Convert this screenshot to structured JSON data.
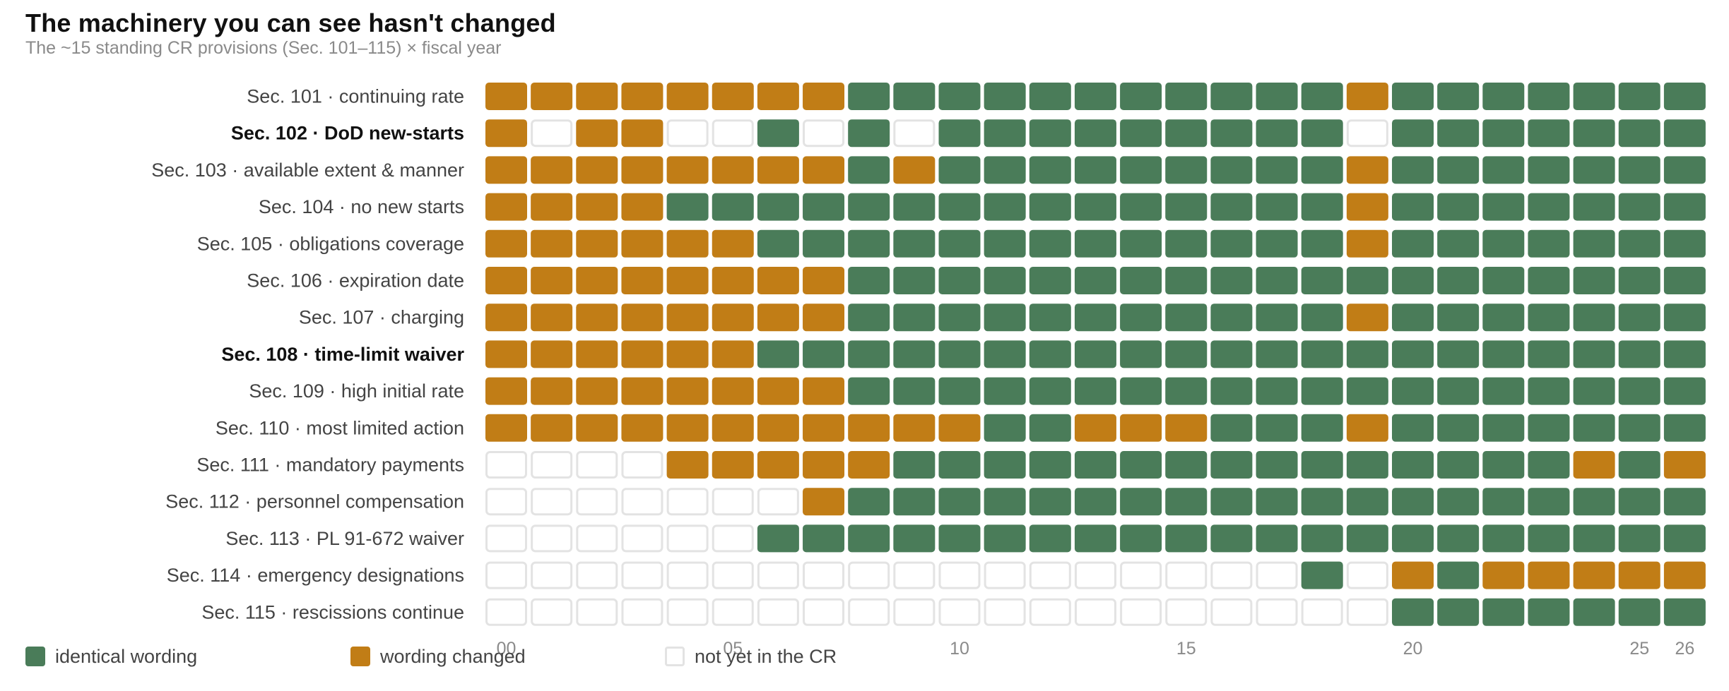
{
  "title": "The machinery you can see hasn't changed",
  "subtitle": "The ~15 standing CR provisions (Sec. 101–115) × fiscal year",
  "colors": {
    "same": "#4a7c59",
    "changed": "#c17d16",
    "absent_fill": "#ffffff",
    "absent_stroke": "#e3e3e3"
  },
  "legend": [
    {
      "key": "S",
      "label": "identical wording"
    },
    {
      "key": "C",
      "label": "wording changed"
    },
    {
      "key": "N",
      "label": "not yet in the CR"
    }
  ],
  "chart_data": {
    "type": "heatmap",
    "x_tick_labels": [
      "00",
      "05",
      "10",
      "15",
      "20",
      "25",
      "26"
    ],
    "x_tick_positions": [
      0,
      5,
      10,
      15,
      20,
      25,
      26
    ],
    "columns": 27,
    "rows": [
      {
        "label": "Sec. 101 · continuing rate",
        "bold": false,
        "cells": "CCCCCCCCSSSSSSSSSSSCSSSSSSS"
      },
      {
        "label": "Sec. 102 · DoD new-starts",
        "bold": true,
        "cells": "CNCCNNSNSNSSSSSSSSSNSSSSSSS"
      },
      {
        "label": "Sec. 103 · available extent & manner",
        "bold": false,
        "cells": "CCCCCCCCSCSSSSSSSSSCSSSSSSS"
      },
      {
        "label": "Sec. 104 · no new starts",
        "bold": false,
        "cells": "CCCCSSSSSSSSSSSSSSSCSSSSSSS"
      },
      {
        "label": "Sec. 105 · obligations coverage",
        "bold": false,
        "cells": "CCCCCCSSSSSSSSSSSSSCSSSSSSS"
      },
      {
        "label": "Sec. 106 · expiration date",
        "bold": false,
        "cells": "CCCCCCCCSSSSSSSSSSSSSSSSSSS"
      },
      {
        "label": "Sec. 107 · charging",
        "bold": false,
        "cells": "CCCCCCCCSSSSSSSSSSSCSSSSSSS"
      },
      {
        "label": "Sec. 108 · time-limit waiver",
        "bold": true,
        "cells": "CCCCCCSSSSSSSSSSSSSSSSSSSSS"
      },
      {
        "label": "Sec. 109 · high initial rate",
        "bold": false,
        "cells": "CCCCCCCCSSSSSSSSSSSSSSSSSSS"
      },
      {
        "label": "Sec. 110 · most limited action",
        "bold": false,
        "cells": "CCCCCCCCCCCSSCCCSSSCSSSSSSS"
      },
      {
        "label": "Sec. 111 · mandatory payments",
        "bold": false,
        "cells": "NNNNCCCCCSSSSSSSSSSSSSSSCSC"
      },
      {
        "label": "Sec. 112 · personnel compensation",
        "bold": false,
        "cells": "NNNNNNNCSSSSSSSSSSSSSSSSSSS"
      },
      {
        "label": "Sec. 113 · PL 91-672 waiver",
        "bold": false,
        "cells": "NNNNNNSSSSSSSSSSSSSSSSSSSSS"
      },
      {
        "label": "Sec. 114 · emergency designations",
        "bold": false,
        "cells": "NNNNNNNNNNNNNNNNNNSNCSCCCCC"
      },
      {
        "label": "Sec. 115 · rescissions continue",
        "bold": false,
        "cells": "NNNNNNNNNNNNNNNNNNNNSSSSSSS"
      }
    ]
  }
}
